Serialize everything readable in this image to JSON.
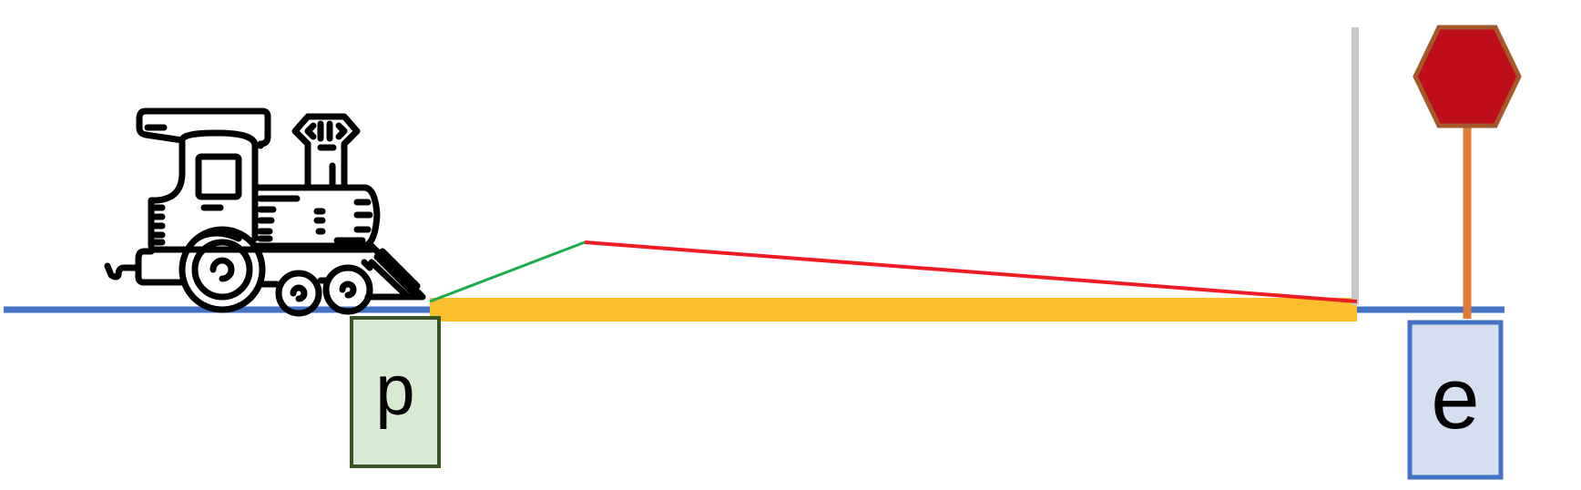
{
  "colors": {
    "background": "#ffffff",
    "track": "#4472c4",
    "highlight_segment": "#fbbf2d",
    "green_line": "#1aab4b",
    "red_line": "#ee1c25",
    "gray_post": "#c8c8c8",
    "sign_fill": "#c00d1c",
    "sign_border": "#a5582a",
    "sign_pole": "#e07a3a",
    "box_p_fill": "#d9ead3",
    "box_p_border": "#375623",
    "box_e_fill": "#d6dff0",
    "box_e_border": "#4472c4",
    "icon_stroke": "#000000"
  },
  "train": {
    "icon": "steam-locomotive-icon"
  },
  "stop_sign": {
    "icon": "hexagon-stop-sign-icon"
  },
  "labels": {
    "box_p": "p",
    "box_e": "e"
  }
}
